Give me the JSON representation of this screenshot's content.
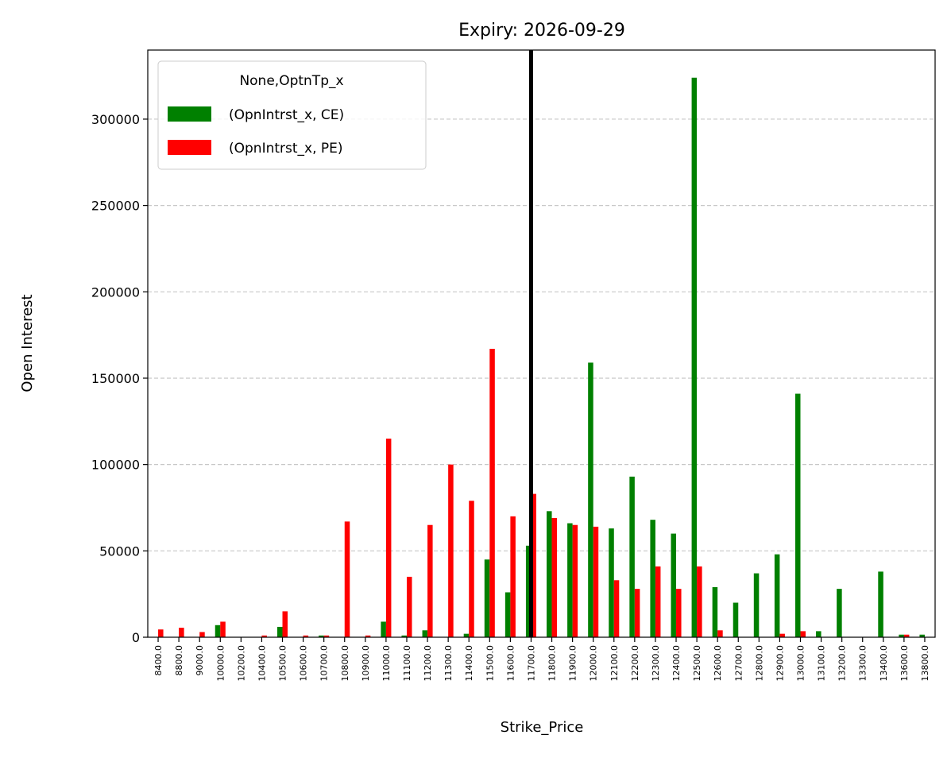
{
  "chart_data": {
    "type": "bar",
    "title": "Expiry: 2026-09-29",
    "xlabel": "Strike_Price",
    "ylabel": "Open Interest",
    "ylim": [
      0,
      340000
    ],
    "yticks": [
      0,
      50000,
      100000,
      150000,
      200000,
      250000,
      300000
    ],
    "ytick_labels": [
      "0",
      "50000",
      "100000",
      "150000",
      "200000",
      "250000",
      "300000"
    ],
    "grid": "y-dashed",
    "legend_position": "top-left",
    "legend_title": "None,OptnTp_x",
    "vline_category": "11700.0",
    "vline_color": "#000000",
    "categories": [
      "8400.0",
      "8800.0",
      "9000.0",
      "10000.0",
      "10200.0",
      "10400.0",
      "10500.0",
      "10600.0",
      "10700.0",
      "10800.0",
      "10900.0",
      "11000.0",
      "11100.0",
      "11200.0",
      "11300.0",
      "11400.0",
      "11500.0",
      "11600.0",
      "11700.0",
      "11800.0",
      "11900.0",
      "12000.0",
      "12100.0",
      "12200.0",
      "12300.0",
      "12400.0",
      "12500.0",
      "12600.0",
      "12700.0",
      "12800.0",
      "12900.0",
      "13000.0",
      "13100.0",
      "13200.0",
      "13300.0",
      "13400.0",
      "13600.0",
      "13800.0"
    ],
    "series": [
      {
        "name": "(OpnIntrst_x, CE)",
        "color": "#008000",
        "values": [
          0,
          0,
          0,
          7000,
          0,
          0,
          6000,
          0,
          1000,
          0,
          0,
          9000,
          1000,
          4000,
          0,
          2000,
          45000,
          26000,
          53000,
          73000,
          66000,
          159000,
          63000,
          93000,
          68000,
          60000,
          324000,
          29000,
          20000,
          37000,
          48000,
          141000,
          3500,
          28000,
          0,
          38000,
          1500,
          1500
        ]
      },
      {
        "name": "(OpnIntrst_x, PE)",
        "color": "#ff0000",
        "values": [
          4500,
          5500,
          3000,
          9000,
          0,
          1000,
          15000,
          1000,
          1000,
          67000,
          1000,
          115000,
          35000,
          65000,
          100000,
          79000,
          167000,
          70000,
          83000,
          69000,
          65000,
          64000,
          33000,
          28000,
          41000,
          28000,
          41000,
          4000,
          0,
          0,
          2000,
          3500,
          0,
          0,
          0,
          0,
          1500,
          0
        ]
      }
    ]
  }
}
